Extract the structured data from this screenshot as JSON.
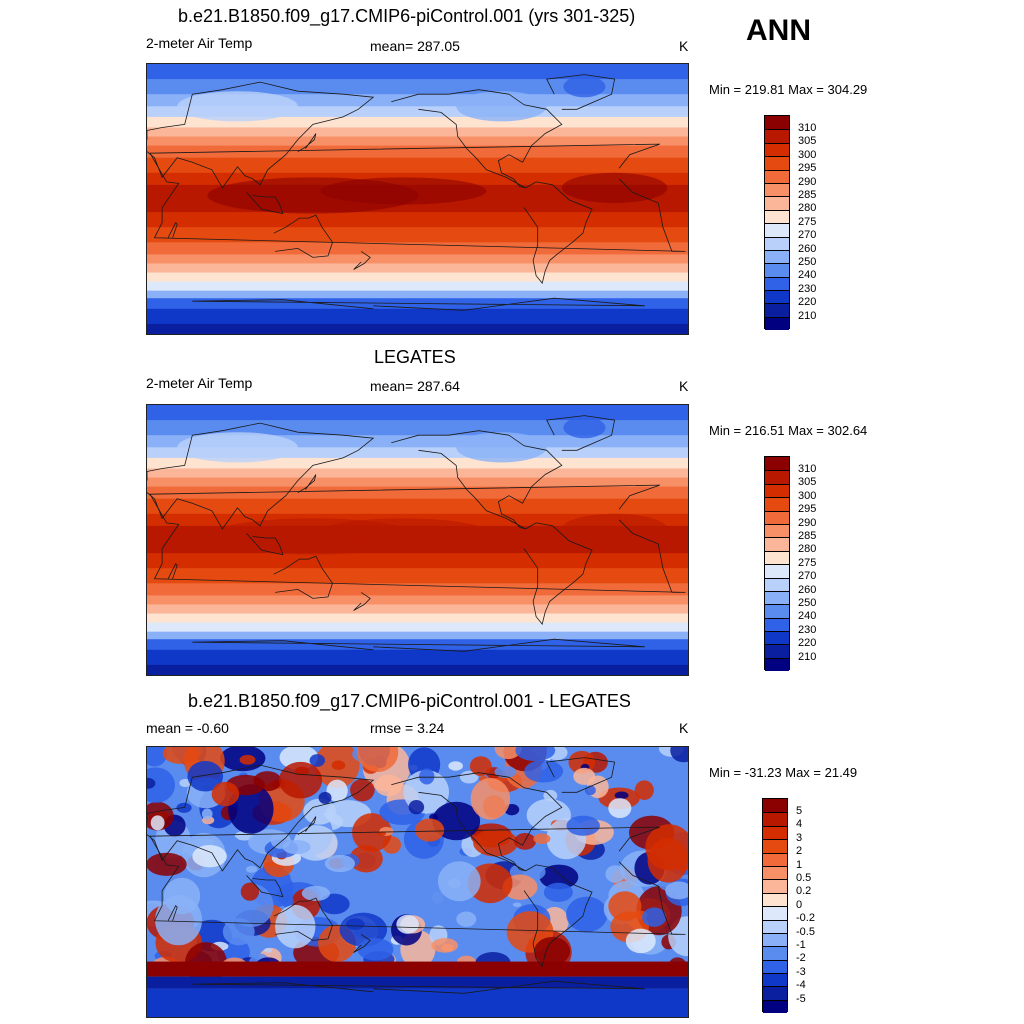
{
  "main_title": "ANN",
  "panels": [
    {
      "title": "b.e21.B1850.f09_g17.CMIP6-piControl.001 (yrs 301-325)",
      "left_label": "2-meter Air Temp",
      "center_label": "mean= 287.05",
      "units": "K",
      "minmax": "Min = 219.81 Max = 304.29",
      "colorbar_labels": [
        "310",
        "305",
        "300",
        "295",
        "290",
        "285",
        "280",
        "275",
        "270",
        "260",
        "250",
        "240",
        "230",
        "220",
        "210"
      ],
      "colorbar_colors": [
        "#8b0000",
        "#b81800",
        "#d32d00",
        "#e54a10",
        "#f06a3a",
        "#f78f67",
        "#fbb69a",
        "#fde3d0",
        "#dde9fb",
        "#b9d1fa",
        "#8ab1f7",
        "#5a8cf0",
        "#2f62e6",
        "#1038c8",
        "#0a1fa0",
        "#000080"
      ]
    },
    {
      "title": "LEGATES",
      "left_label": "2-meter Air Temp",
      "center_label": "mean= 287.64",
      "units": "K",
      "minmax": "Min = 216.51 Max = 302.64",
      "colorbar_labels": [
        "310",
        "305",
        "300",
        "295",
        "290",
        "285",
        "280",
        "275",
        "270",
        "260",
        "250",
        "240",
        "230",
        "220",
        "210"
      ],
      "colorbar_colors": [
        "#8b0000",
        "#b81800",
        "#d32d00",
        "#e54a10",
        "#f06a3a",
        "#f78f67",
        "#fbb69a",
        "#fde3d0",
        "#dde9fb",
        "#b9d1fa",
        "#8ab1f7",
        "#5a8cf0",
        "#2f62e6",
        "#1038c8",
        "#0a1fa0",
        "#000080"
      ]
    },
    {
      "title": "b.e21.B1850.f09_g17.CMIP6-piControl.001 - LEGATES",
      "left_label": "mean =  -0.60",
      "center_label": "rmse =   3.24",
      "units": "K",
      "minmax": "Min = -31.23 Max =  21.49",
      "colorbar_labels": [
        "5",
        "4",
        "3",
        "2",
        "1",
        "0.5",
        "0.2",
        "0",
        "-0.2",
        "-0.5",
        "-1",
        "-2",
        "-3",
        "-4",
        "-5"
      ],
      "colorbar_colors": [
        "#8b0000",
        "#b81800",
        "#d32d00",
        "#e54a10",
        "#f06a3a",
        "#f78f67",
        "#fbb69a",
        "#fde3d0",
        "#dde9fb",
        "#b9d1fa",
        "#8ab1f7",
        "#5a8cf0",
        "#2f62e6",
        "#1038c8",
        "#0a1fa0",
        "#000080"
      ]
    }
  ]
}
